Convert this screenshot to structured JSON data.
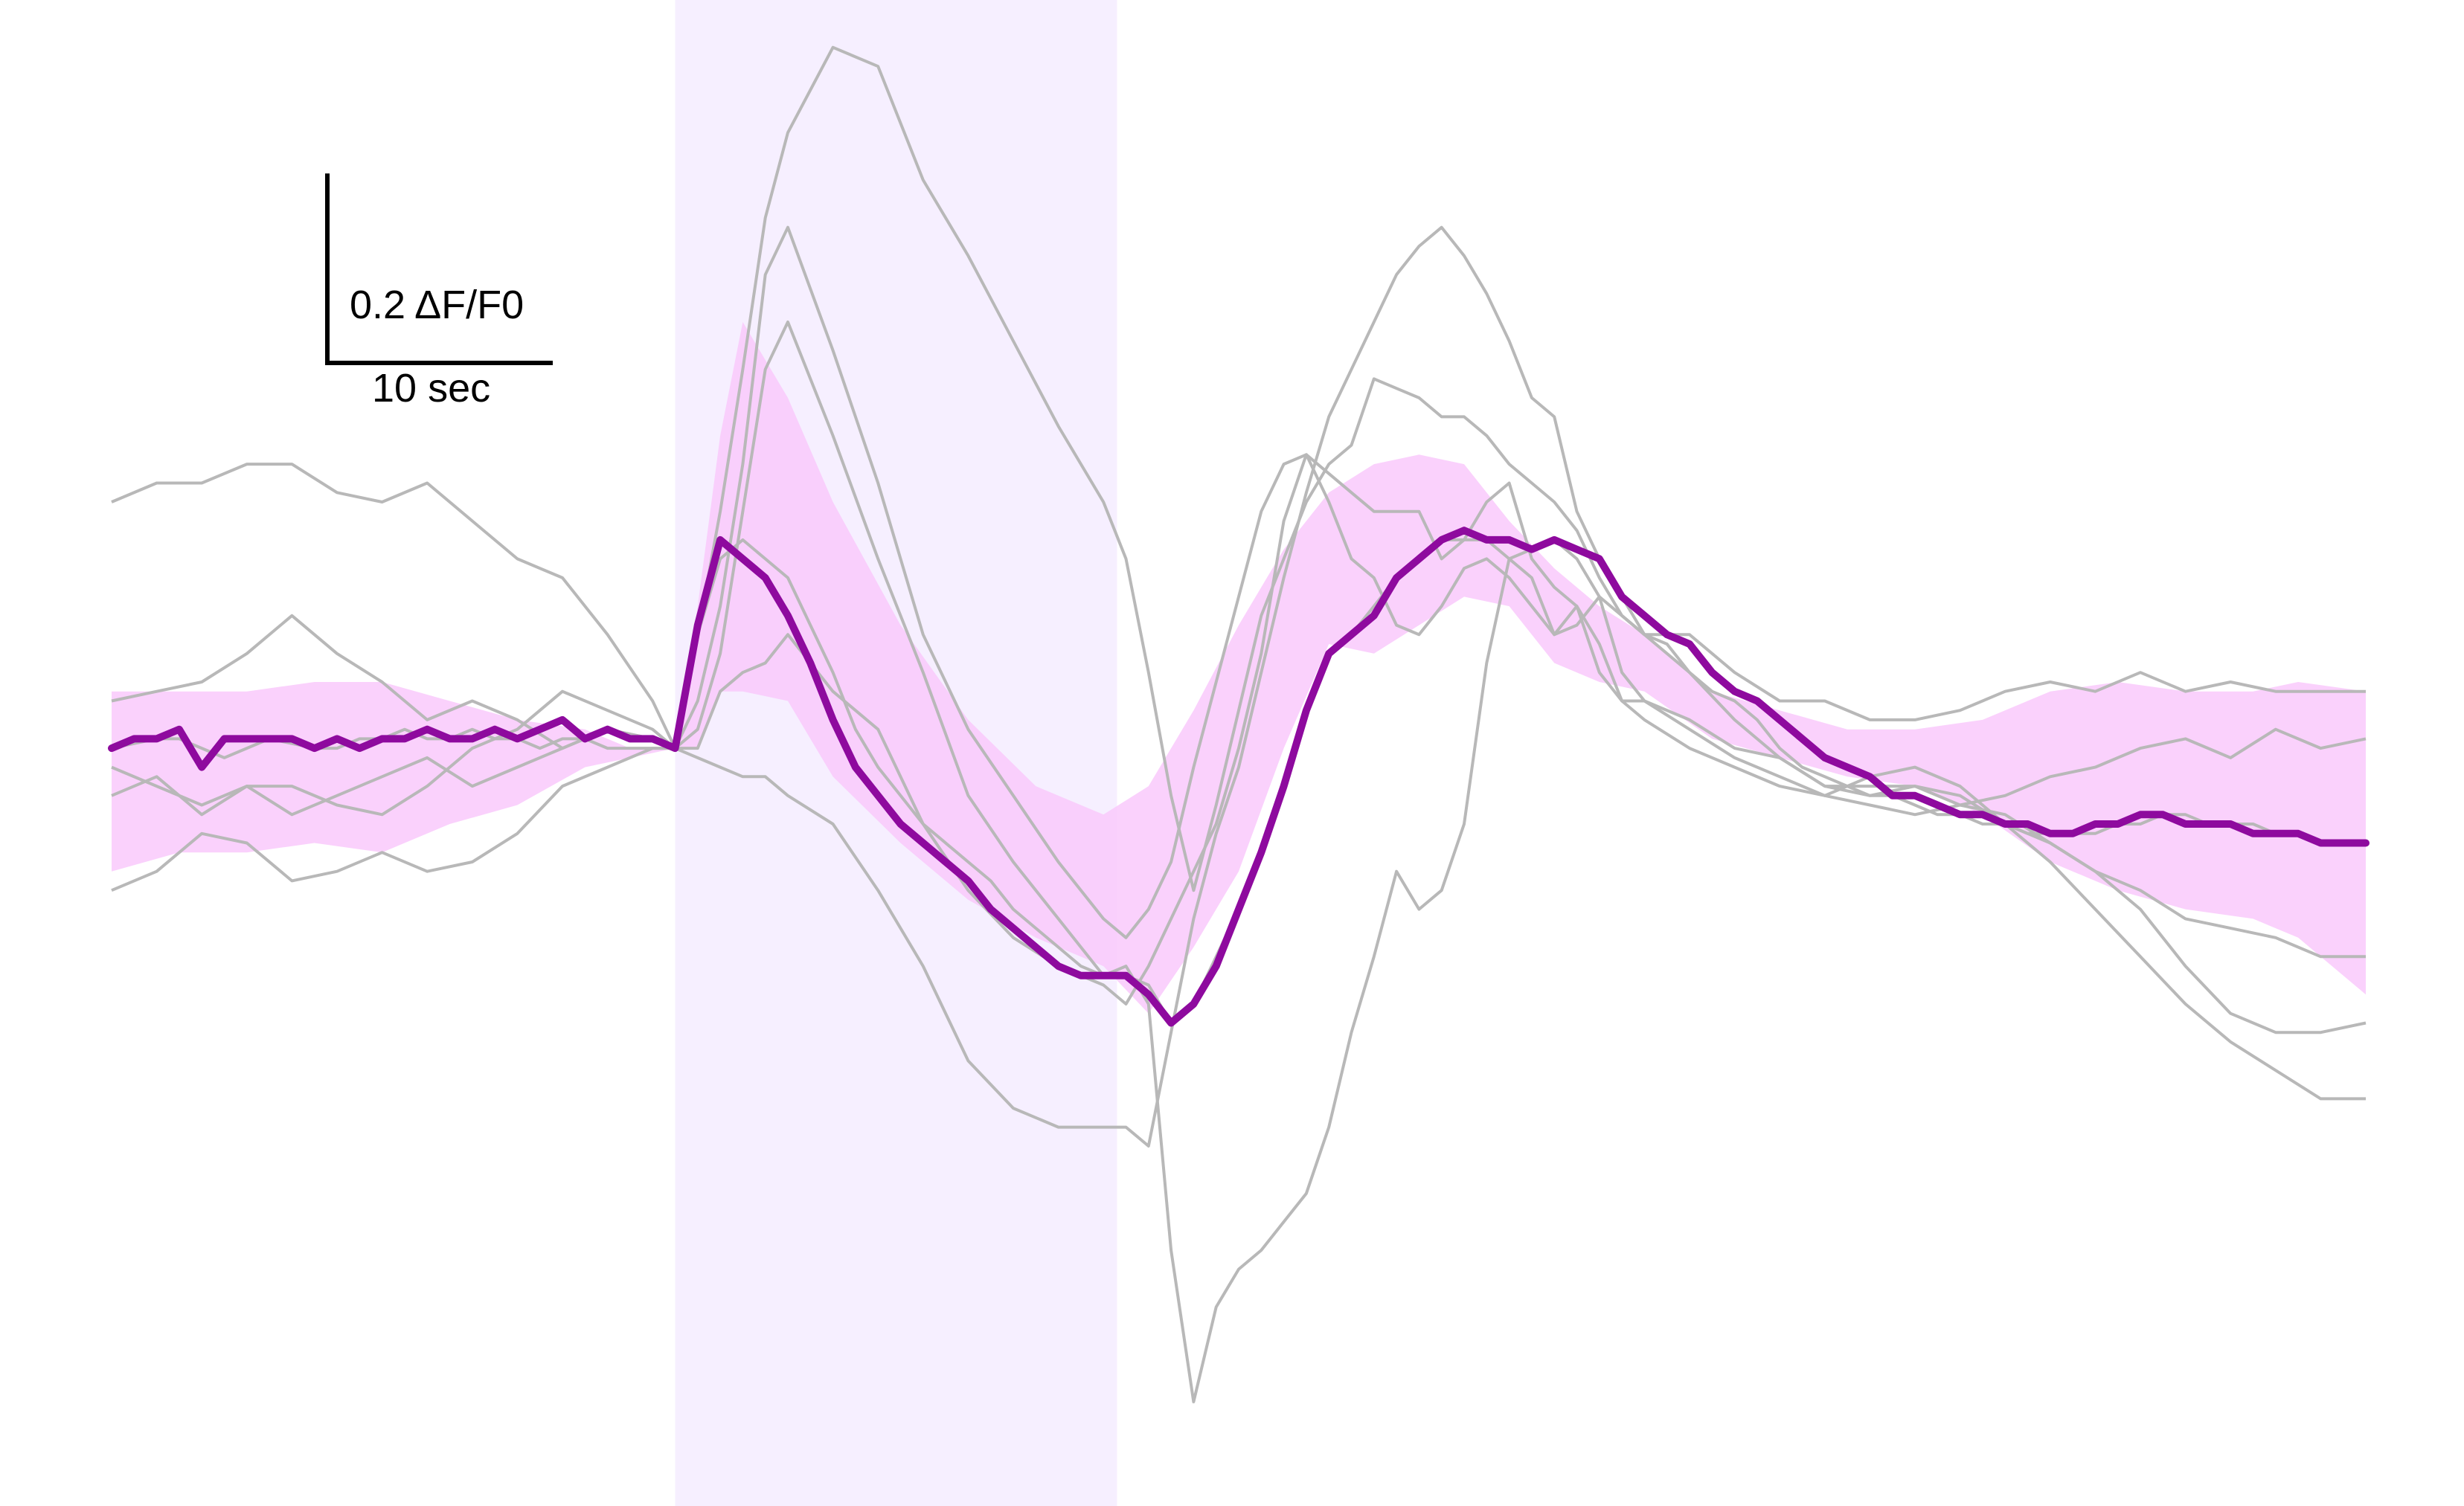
{
  "chart_data": {
    "type": "line",
    "title": "",
    "xlabel": "",
    "ylabel": "",
    "x_unit": "sec",
    "y_unit": "ΔF/F0",
    "xlim": [
      -25,
      75
    ],
    "ylim": [
      -0.8,
      0.79
    ],
    "grid": false,
    "legend": "none",
    "stimulus_window": {
      "x_start": 0,
      "x_end": 19.6,
      "color": "#f6efff"
    },
    "scale_bar": {
      "y_label": "0.2 ΔF/F0",
      "y_value": 0.2,
      "x_label": "10 sec",
      "x_value": 10
    },
    "colors": {
      "mean_line": "#8e0a9e",
      "sem_band": "#f9c9fb",
      "individual_traces": "#b8b8b8"
    },
    "band": {
      "x": [
        -25,
        -22,
        -19,
        -16,
        -13,
        -10,
        -7,
        -4,
        -2,
        0,
        1,
        2,
        3,
        5,
        7,
        10,
        13,
        16,
        19,
        21,
        23,
        25,
        27,
        29,
        31,
        33,
        35,
        37,
        39,
        41,
        43,
        46,
        49,
        52,
        55,
        58,
        61,
        64,
        67,
        70,
        72,
        75
      ],
      "upper": [
        0.06,
        0.06,
        0.06,
        0.07,
        0.07,
        0.05,
        0.03,
        0.02,
        0.0,
        0.0,
        0.15,
        0.33,
        0.45,
        0.37,
        0.26,
        0.13,
        0.03,
        -0.04,
        -0.07,
        -0.04,
        0.04,
        0.13,
        0.21,
        0.27,
        0.3,
        0.31,
        0.3,
        0.24,
        0.19,
        0.15,
        0.12,
        0.06,
        0.04,
        0.02,
        0.02,
        0.03,
        0.06,
        0.07,
        0.06,
        0.06,
        0.07,
        0.06
      ],
      "lower": [
        -0.13,
        -0.11,
        -0.11,
        -0.1,
        -0.11,
        -0.08,
        -0.06,
        -0.02,
        -0.01,
        0.0,
        0.0,
        0.06,
        0.06,
        0.05,
        -0.03,
        -0.1,
        -0.16,
        -0.2,
        -0.23,
        -0.28,
        -0.21,
        -0.13,
        0.0,
        0.11,
        0.1,
        0.13,
        0.16,
        0.15,
        0.09,
        0.07,
        0.06,
        0.01,
        -0.01,
        -0.03,
        -0.04,
        -0.07,
        -0.12,
        -0.15,
        -0.17,
        -0.18,
        -0.2,
        -0.26
      ]
    },
    "series": [
      {
        "x": [
          -25,
          -23,
          -22,
          -21,
          -20,
          -18,
          -16,
          -15,
          -14,
          -13,
          -12,
          -11,
          -10,
          -9,
          -8,
          -7,
          -6,
          -5,
          -4,
          -3,
          -2,
          -1,
          0,
          1,
          2,
          3,
          4,
          5,
          6,
          7,
          8,
          9,
          10,
          11,
          12,
          13,
          14,
          15,
          16,
          17,
          18,
          19,
          20,
          21,
          22,
          23,
          24,
          25,
          26,
          27,
          28,
          29,
          30,
          31,
          32,
          33,
          34,
          35,
          36,
          37,
          38,
          39,
          40,
          41,
          42,
          43,
          44,
          45,
          46,
          47,
          48,
          49,
          50,
          51,
          52,
          53,
          54,
          55,
          56,
          57,
          58,
          59,
          60,
          61,
          62,
          63,
          64,
          65,
          66,
          67,
          68,
          69,
          70,
          71,
          72,
          73,
          74,
          75
        ],
        "y": [
          0.0,
          0.01,
          0.01,
          0.0,
          -0.01,
          0.01,
          0.0,
          0.0,
          0.01,
          0.01,
          0.02,
          0.01,
          0.01,
          0.02,
          0.01,
          0.01,
          0.0,
          0.01,
          0.01,
          0.0,
          0.0,
          0.0,
          0.0,
          0.12,
          0.2,
          0.22,
          0.2,
          0.18,
          0.13,
          0.08,
          0.02,
          -0.02,
          -0.05,
          -0.08,
          -0.1,
          -0.12,
          -0.14,
          -0.17,
          -0.19,
          -0.21,
          -0.23,
          -0.24,
          -0.24,
          -0.25,
          -0.29,
          -0.27,
          -0.22,
          -0.17,
          -0.11,
          -0.04,
          0.04,
          0.1,
          0.12,
          0.15,
          0.18,
          0.2,
          0.22,
          0.22,
          0.22,
          0.2,
          0.21,
          0.22,
          0.2,
          0.16,
          0.14,
          0.12,
          0.11,
          0.08,
          0.06,
          0.05,
          0.03,
          0.0,
          -0.02,
          -0.03,
          -0.04,
          -0.05,
          -0.05,
          -0.06,
          -0.07,
          -0.07,
          -0.08,
          -0.08,
          -0.09,
          -0.09,
          -0.09,
          -0.09,
          -0.08,
          -0.08,
          -0.07,
          -0.07,
          -0.08,
          -0.08,
          -0.08,
          -0.09,
          -0.09,
          -0.1,
          -0.1,
          -0.1
        ]
      },
      {
        "x": [
          -25,
          -23,
          -21,
          -19,
          -17,
          -15,
          -13,
          -11,
          -9,
          -7,
          -5,
          -3,
          -1,
          0,
          1,
          2,
          3,
          4,
          5,
          7,
          9,
          11,
          13,
          15,
          17,
          19,
          20,
          21,
          22,
          23,
          24,
          25,
          26,
          27,
          28,
          29,
          30,
          31,
          32,
          33,
          34,
          35,
          36,
          37,
          38,
          39,
          40,
          41,
          42,
          43,
          45,
          47,
          49,
          51,
          53,
          55,
          57,
          59,
          61,
          63,
          65,
          67,
          69,
          71,
          73,
          75
        ],
        "y": [
          0.26,
          0.28,
          0.28,
          0.3,
          0.3,
          0.27,
          0.26,
          0.28,
          0.24,
          0.2,
          0.18,
          0.12,
          0.05,
          0.0,
          0.12,
          0.25,
          0.4,
          0.56,
          0.65,
          0.74,
          0.72,
          0.6,
          0.52,
          0.43,
          0.34,
          0.26,
          0.2,
          0.08,
          -0.05,
          -0.15,
          -0.06,
          0.04,
          0.14,
          0.2,
          0.26,
          0.3,
          0.32,
          0.39,
          0.38,
          0.37,
          0.35,
          0.35,
          0.33,
          0.3,
          0.28,
          0.26,
          0.23,
          0.18,
          0.14,
          0.12,
          0.12,
          0.08,
          0.05,
          0.05,
          0.03,
          0.03,
          0.04,
          0.06,
          0.07,
          0.06,
          0.08,
          0.06,
          0.07,
          0.06,
          0.06,
          0.06
        ]
      },
      {
        "x": [
          -25,
          -23,
          -21,
          -19,
          -17,
          -15,
          -13,
          -11,
          -9,
          -7,
          -5,
          -3,
          -1,
          0,
          1,
          2,
          3,
          4,
          5,
          7,
          9,
          11,
          13,
          15,
          17,
          19,
          20,
          21,
          22,
          23,
          24,
          25,
          26,
          27,
          28,
          29,
          30,
          31,
          32,
          33,
          34,
          35,
          36,
          37,
          38,
          39,
          40,
          41,
          42,
          43,
          45,
          47,
          49,
          51,
          53,
          55,
          57,
          59,
          61,
          63,
          65,
          67,
          69,
          71,
          73,
          75
        ],
        "y": [
          0.05,
          0.06,
          0.07,
          0.1,
          0.14,
          0.1,
          0.07,
          0.03,
          0.05,
          0.03,
          0.0,
          0.02,
          0.01,
          0.0,
          0.02,
          0.1,
          0.25,
          0.4,
          0.45,
          0.33,
          0.2,
          0.08,
          -0.05,
          -0.12,
          -0.18,
          -0.24,
          -0.23,
          -0.27,
          -0.53,
          -0.69,
          -0.59,
          -0.55,
          -0.53,
          -0.5,
          -0.47,
          -0.4,
          -0.3,
          -0.22,
          -0.13,
          -0.17,
          -0.15,
          -0.08,
          0.09,
          0.2,
          0.18,
          0.12,
          0.15,
          0.11,
          0.05,
          0.03,
          0.0,
          -0.02,
          -0.04,
          -0.05,
          -0.03,
          -0.02,
          -0.04,
          -0.08,
          -0.12,
          -0.17,
          -0.22,
          -0.27,
          -0.31,
          -0.34,
          -0.37,
          -0.37
        ]
      },
      {
        "x": [
          -25,
          -23,
          -21,
          -19,
          -17,
          -15,
          -13,
          -11,
          -9,
          -7,
          -5,
          -3,
          -1,
          0,
          1,
          2,
          3,
          4,
          5,
          7,
          9,
          11,
          13,
          15,
          17,
          19,
          20,
          21,
          22,
          23,
          24,
          25,
          26,
          27,
          28,
          29,
          30,
          31,
          32,
          33,
          34,
          35,
          36,
          37,
          38,
          39,
          40,
          41,
          42,
          43,
          45,
          47,
          49,
          51,
          53,
          55,
          57,
          59,
          61,
          63,
          65,
          67,
          69,
          71,
          73,
          75
        ],
        "y": [
          -0.05,
          -0.03,
          -0.07,
          -0.04,
          -0.04,
          -0.06,
          -0.07,
          -0.04,
          0.0,
          0.02,
          0.06,
          0.04,
          0.02,
          0.0,
          0.0,
          0.06,
          0.08,
          0.09,
          0.12,
          0.06,
          0.02,
          -0.08,
          -0.15,
          -0.2,
          -0.23,
          -0.25,
          -0.27,
          -0.23,
          -0.18,
          -0.13,
          -0.08,
          0.0,
          0.1,
          0.24,
          0.31,
          0.29,
          0.27,
          0.25,
          0.25,
          0.25,
          0.2,
          0.22,
          0.26,
          0.28,
          0.2,
          0.17,
          0.15,
          0.08,
          0.05,
          0.05,
          0.03,
          0.0,
          -0.01,
          -0.04,
          -0.05,
          -0.04,
          -0.06,
          -0.07,
          -0.1,
          -0.13,
          -0.15,
          -0.18,
          -0.19,
          -0.2,
          -0.22,
          -0.22
        ]
      },
      {
        "x": [
          -25,
          -23,
          -21,
          -19,
          -17,
          -15,
          -13,
          -11,
          -9,
          -7,
          -5,
          -3,
          -1,
          0,
          1,
          2,
          3,
          4,
          5,
          7,
          9,
          11,
          13,
          15,
          17,
          19,
          20,
          21,
          22,
          23,
          24,
          25,
          26,
          27,
          28,
          29,
          30,
          31,
          32,
          33,
          34,
          35,
          36,
          37,
          38,
          39,
          40,
          41,
          42,
          43,
          45,
          47,
          49,
          51,
          53,
          55,
          57,
          59,
          61,
          63,
          65,
          67,
          69,
          71,
          73,
          75
        ],
        "y": [
          -0.15,
          -0.13,
          -0.09,
          -0.1,
          -0.14,
          -0.13,
          -0.11,
          -0.13,
          -0.12,
          -0.09,
          -0.04,
          -0.02,
          0.0,
          0.0,
          -0.01,
          -0.02,
          -0.03,
          -0.03,
          -0.05,
          -0.08,
          -0.15,
          -0.23,
          -0.33,
          -0.38,
          -0.4,
          -0.4,
          -0.4,
          -0.42,
          -0.3,
          -0.18,
          -0.09,
          -0.02,
          0.08,
          0.18,
          0.27,
          0.35,
          0.4,
          0.45,
          0.5,
          0.53,
          0.55,
          0.52,
          0.48,
          0.43,
          0.37,
          0.35,
          0.25,
          0.2,
          0.16,
          0.12,
          0.08,
          0.03,
          -0.01,
          -0.04,
          -0.04,
          -0.04,
          -0.05,
          -0.08,
          -0.1,
          -0.13,
          -0.17,
          -0.23,
          -0.28,
          -0.3,
          -0.3,
          -0.29
        ]
      },
      {
        "x": [
          -25,
          -23,
          -21,
          -19,
          -17,
          -15,
          -13,
          -11,
          -9,
          -7,
          -5,
          -3,
          -1,
          0,
          1,
          2,
          3,
          4,
          5,
          7,
          9,
          11,
          13,
          15,
          17,
          19,
          20,
          21,
          22,
          23,
          24,
          25,
          26,
          27,
          28,
          29,
          30,
          31,
          32,
          33,
          34,
          35,
          36,
          37,
          38,
          39,
          40,
          41,
          42,
          43,
          45,
          47,
          49,
          51,
          53,
          55,
          57,
          59,
          61,
          63,
          65,
          67,
          69,
          71,
          73,
          75
        ],
        "y": [
          -0.02,
          -0.04,
          -0.06,
          -0.04,
          -0.07,
          -0.05,
          -0.03,
          -0.01,
          -0.04,
          -0.02,
          0.0,
          0.02,
          0.01,
          0.0,
          0.05,
          0.15,
          0.3,
          0.5,
          0.55,
          0.42,
          0.28,
          0.12,
          0.02,
          -0.05,
          -0.12,
          -0.18,
          -0.2,
          -0.17,
          -0.12,
          -0.02,
          0.07,
          0.16,
          0.25,
          0.3,
          0.31,
          0.26,
          0.2,
          0.18,
          0.13,
          0.12,
          0.15,
          0.19,
          0.2,
          0.18,
          0.15,
          0.12,
          0.13,
          0.16,
          0.08,
          0.05,
          0.02,
          -0.01,
          -0.03,
          -0.05,
          -0.06,
          -0.07,
          -0.06,
          -0.05,
          -0.03,
          -0.02,
          0.0,
          0.01,
          -0.01,
          0.02,
          0.0,
          0.01
        ]
      }
    ],
    "mean": {
      "x": [
        -25,
        -24,
        -23,
        -22,
        -21,
        -20,
        -19,
        -18,
        -17,
        -16,
        -15,
        -14,
        -13,
        -12,
        -11,
        -10,
        -9,
        -8,
        -7,
        -6,
        -5,
        -4,
        -3,
        -2,
        -1,
        0,
        1,
        2,
        3,
        4,
        5,
        6,
        7,
        8,
        9,
        10,
        11,
        12,
        13,
        14,
        15,
        16,
        17,
        18,
        19,
        20,
        21,
        22,
        23,
        24,
        25,
        26,
        27,
        28,
        29,
        30,
        31,
        32,
        33,
        34,
        35,
        36,
        37,
        38,
        39,
        40,
        41,
        42,
        43,
        44,
        45,
        46,
        47,
        48,
        49,
        50,
        51,
        52,
        53,
        54,
        55,
        56,
        57,
        58,
        59,
        60,
        61,
        62,
        63,
        64,
        65,
        66,
        67,
        68,
        69,
        70,
        71,
        72,
        73,
        74,
        75
      ],
      "y": [
        0.0,
        0.01,
        0.01,
        0.02,
        -0.02,
        0.01,
        0.01,
        0.01,
        0.01,
        0.0,
        0.01,
        0.0,
        0.01,
        0.01,
        0.02,
        0.01,
        0.01,
        0.02,
        0.01,
        0.02,
        0.03,
        0.01,
        0.02,
        0.01,
        0.01,
        0.0,
        0.13,
        0.22,
        0.2,
        0.18,
        0.14,
        0.09,
        0.03,
        -0.02,
        -0.05,
        -0.08,
        -0.1,
        -0.12,
        -0.14,
        -0.17,
        -0.19,
        -0.21,
        -0.23,
        -0.24,
        -0.24,
        -0.24,
        -0.26,
        -0.29,
        -0.27,
        -0.23,
        -0.17,
        -0.11,
        -0.04,
        0.04,
        0.1,
        0.12,
        0.14,
        0.18,
        0.2,
        0.22,
        0.23,
        0.22,
        0.22,
        0.21,
        0.22,
        0.21,
        0.2,
        0.16,
        0.14,
        0.12,
        0.11,
        0.08,
        0.06,
        0.05,
        0.03,
        0.01,
        -0.01,
        -0.02,
        -0.03,
        -0.05,
        -0.05,
        -0.06,
        -0.07,
        -0.07,
        -0.08,
        -0.08,
        -0.09,
        -0.09,
        -0.08,
        -0.08,
        -0.07,
        -0.07,
        -0.08,
        -0.08,
        -0.08,
        -0.09,
        -0.09,
        -0.09,
        -0.1,
        -0.1,
        -0.1
      ]
    }
  }
}
